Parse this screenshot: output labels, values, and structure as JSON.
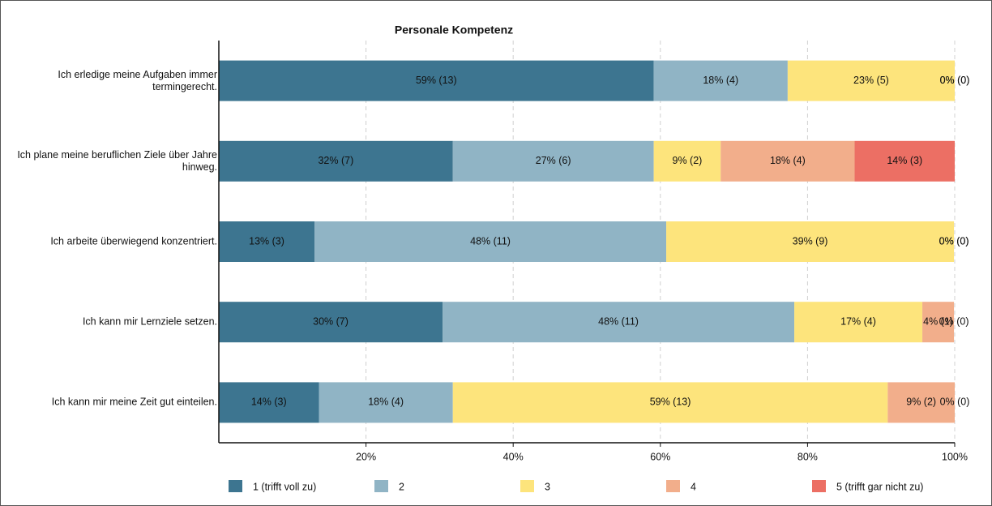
{
  "chart_data": {
    "type": "stacked-barh",
    "title": "Personale Kompetenz",
    "categories": [
      "Ich erledige meine Aufgaben immer termingerecht.",
      "Ich plane meine beruflichen Ziele über Jahre hinweg.",
      "Ich arbeite überwiegend konzentriert.",
      "Ich kann mir Lernziele setzen.",
      "Ich kann mir meine Zeit gut einteilen."
    ],
    "series": [
      {
        "name": "1 (trifft voll zu)",
        "color": "#3d7590",
        "values": [
          59.1,
          31.8,
          13.0,
          30.4,
          13.6
        ],
        "value_labels": [
          "59% (13)",
          "32% (7)",
          "13% (3)",
          "30% (7)",
          "14% (3)"
        ]
      },
      {
        "name": "2",
        "color": "#90b4c5",
        "values": [
          18.2,
          27.3,
          47.8,
          47.8,
          18.2
        ],
        "value_labels": [
          "18% (4)",
          "27% (6)",
          "48% (11)",
          "48% (11)",
          "18% (4)"
        ]
      },
      {
        "name": "3",
        "color": "#fde47c",
        "values": [
          22.7,
          9.1,
          39.1,
          17.4,
          59.1
        ],
        "value_labels": [
          "23% (5)",
          "9% (2)",
          "39% (9)",
          "17% (4)",
          "59% (13)"
        ]
      },
      {
        "name": "4",
        "color": "#f2ae8b",
        "values": [
          0,
          18.2,
          0,
          4.3,
          9.1
        ],
        "value_labels": [
          "0% (0)",
          "18% (4)",
          "0% (0)",
          "4% (1)",
          "9% (2)"
        ]
      },
      {
        "name": "5 (trifft gar nicht zu)",
        "color": "#ec6f64",
        "values": [
          0,
          13.6,
          0,
          0,
          0
        ],
        "value_labels": [
          "0% (0)",
          "14% (3)",
          "0% (0)",
          "0% (0)",
          "0% (0)"
        ]
      }
    ],
    "xlim": [
      0,
      100
    ],
    "xticks": [
      {
        "value": 20,
        "label": "20%"
      },
      {
        "value": 40,
        "label": "40%"
      },
      {
        "value": 60,
        "label": "60%"
      },
      {
        "value": 80,
        "label": "80%"
      },
      {
        "value": 100,
        "label": "100%"
      }
    ],
    "grid": true
  }
}
